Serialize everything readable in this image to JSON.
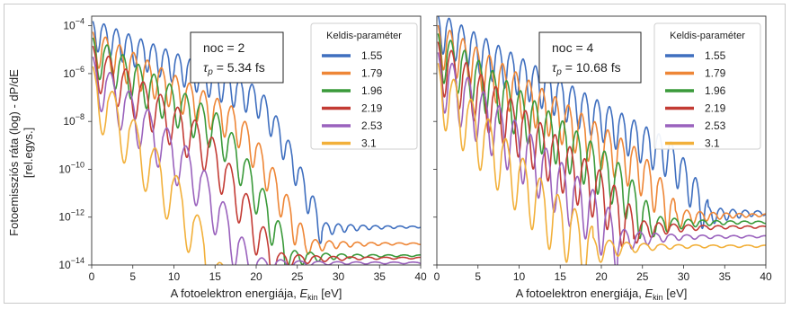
{
  "figure": {
    "ylabel_lines": [
      "Fotoemissziós ráta (log) - dP/dE",
      "[rel.egys.]"
    ]
  },
  "chart_data": [
    {
      "type": "line",
      "panel": "left",
      "y_scale": "log",
      "xlim": [
        0,
        40
      ],
      "ylim_exponent": [
        -14,
        -3.6
      ],
      "x_ticks": [
        0,
        5,
        10,
        15,
        20,
        25,
        30,
        35,
        40
      ],
      "y_tick_exponents": [
        -14,
        -12,
        -10,
        -8,
        -6,
        -4
      ],
      "xlabel": {
        "prefix": "A fotoelektron energiája, ",
        "var": "E",
        "sub": "kin",
        "unit": "  [eV]"
      },
      "annotation": {
        "line1": "noc = 2",
        "tau_symbol": "τ",
        "tau_sub": "p",
        "tau_value": " = 5.34 fs"
      },
      "legend": {
        "title": "Keldis-paraméter",
        "position": "top-right"
      },
      "series": [
        {
          "name": "1.55",
          "color": "#3f6fbf",
          "start_exp": -4.1,
          "knee_x": 20,
          "knee_exp": -6.9,
          "floor_x": 28,
          "floor_exp": -12.4,
          "osc_period": 1.5,
          "osc_amp": 0.7
        },
        {
          "name": "1.79",
          "color": "#ee8636",
          "start_exp": -4.6,
          "knee_x": 17,
          "knee_exp": -7.8,
          "floor_x": 26,
          "floor_exp": -13.1,
          "osc_period": 1.7,
          "osc_amp": 0.8
        },
        {
          "name": "1.96",
          "color": "#3a9a3a",
          "start_exp": -4.9,
          "knee_x": 15,
          "knee_exp": -8.1,
          "floor_x": 24,
          "floor_exp": -13.6,
          "osc_period": 1.9,
          "osc_amp": 0.9
        },
        {
          "name": "2.19",
          "color": "#c33b34",
          "start_exp": -5.3,
          "knee_x": 13,
          "knee_exp": -8.6,
          "floor_x": 22,
          "floor_exp": -13.7,
          "osc_period": 2.1,
          "osc_amp": 1.0
        },
        {
          "name": "2.53",
          "color": "#9a62bd",
          "start_exp": -5.8,
          "knee_x": 11,
          "knee_exp": -9.5,
          "floor_x": 19,
          "floor_exp": -13.9,
          "osc_period": 2.3,
          "osc_amp": 1.1
        },
        {
          "name": "3.1",
          "color": "#f2b03a",
          "start_exp": -6.3,
          "knee_x": 9,
          "knee_exp": -10.4,
          "floor_x": 15,
          "floor_exp": -14.2,
          "osc_period": 2.6,
          "osc_amp": 1.3
        }
      ]
    },
    {
      "type": "line",
      "panel": "right",
      "y_scale": "log",
      "xlim": [
        0,
        40
      ],
      "ylim_exponent": [
        -14,
        -3.6
      ],
      "x_ticks": [
        0,
        5,
        10,
        15,
        20,
        25,
        30,
        35,
        40
      ],
      "y_tick_exponents": [
        -14,
        -12,
        -10,
        -8,
        -6,
        -4
      ],
      "xlabel": {
        "prefix": "A fotoelektron energiája, ",
        "var": "E",
        "sub": "kin",
        "unit": "  [eV]"
      },
      "annotation": {
        "line1": "noc = 4",
        "tau_symbol": "τ",
        "tau_sub": "p",
        "tau_value": " = 10.68 fs"
      },
      "legend": {
        "title": "Keldis-paraméter",
        "position": "top-right"
      },
      "series": [
        {
          "name": "1.55",
          "color": "#3f6fbf",
          "start_exp": -3.9,
          "knee_x": 28,
          "knee_exp": -9.2,
          "floor_x": 33,
          "floor_exp": -11.8,
          "osc_period": 1.5,
          "osc_amp": 0.9
        },
        {
          "name": "1.79",
          "color": "#ee8636",
          "start_exp": -4.4,
          "knee_x": 24,
          "knee_exp": -9.6,
          "floor_x": 29,
          "floor_exp": -11.9,
          "osc_period": 1.6,
          "osc_amp": 1.0
        },
        {
          "name": "1.96",
          "color": "#3a9a3a",
          "start_exp": -4.8,
          "knee_x": 21,
          "knee_exp": -10.0,
          "floor_x": 26,
          "floor_exp": -12.2,
          "osc_period": 1.7,
          "osc_amp": 1.1
        },
        {
          "name": "2.19",
          "color": "#c33b34",
          "start_exp": -5.2,
          "knee_x": 19,
          "knee_exp": -10.5,
          "floor_x": 24,
          "floor_exp": -12.4,
          "osc_period": 1.8,
          "osc_amp": 1.2
        },
        {
          "name": "2.53",
          "color": "#9a62bd",
          "start_exp": -5.7,
          "knee_x": 17,
          "knee_exp": -11.0,
          "floor_x": 22,
          "floor_exp": -12.8,
          "osc_period": 1.9,
          "osc_amp": 1.3
        },
        {
          "name": "3.1",
          "color": "#f2b03a",
          "start_exp": -6.2,
          "knee_x": 14,
          "knee_exp": -11.7,
          "floor_x": 19,
          "floor_exp": -13.2,
          "osc_period": 2.1,
          "osc_amp": 1.4
        }
      ]
    }
  ]
}
